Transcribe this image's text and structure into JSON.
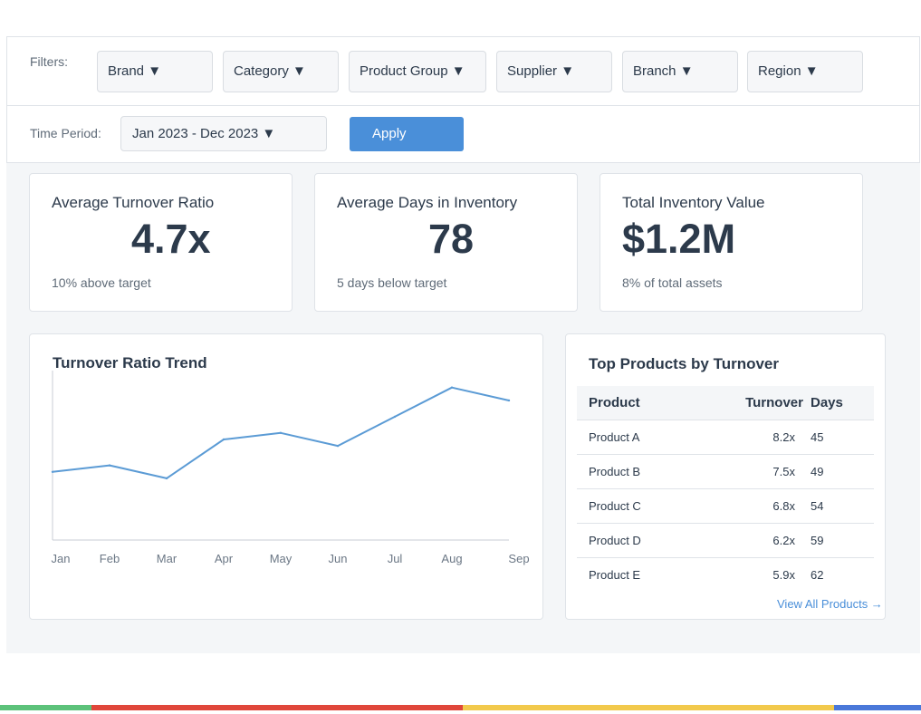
{
  "filters": {
    "label": "Filters:",
    "dropdowns": [
      "Brand ▼",
      "Category ▼",
      "Product Group ▼",
      "Supplier ▼",
      "Branch ▼",
      "Region ▼"
    ]
  },
  "time": {
    "label": "Time Period:",
    "value": "Jan 2023 - Dec 2023 ▼",
    "apply_label": "Apply"
  },
  "kpis": [
    {
      "title": "Average Turnover Ratio",
      "value": "4.7x",
      "sub": "10% above target"
    },
    {
      "title": "Average Days in Inventory",
      "value": "78",
      "sub": "5 days below target"
    },
    {
      "title": "Total Inventory Value",
      "value": "$1.2M",
      "sub": "8% of total assets"
    }
  ],
  "chart": {
    "title": "Turnover Ratio Trend"
  },
  "chart_data": {
    "type": "line",
    "title": "Turnover Ratio Trend",
    "categories": [
      "Jan",
      "Feb",
      "Mar",
      "Apr",
      "May",
      "Jun",
      "Jul",
      "Aug",
      "Sep"
    ],
    "values": [
      4.1,
      4.3,
      3.9,
      5.1,
      5.3,
      4.9,
      5.8,
      6.7,
      6.3
    ],
    "ylim": [
      2.0,
      7.5
    ],
    "xlabel": "",
    "ylabel": "",
    "color": "#5b9bd5"
  },
  "top_products": {
    "title": "Top Products by Turnover",
    "columns": [
      "Product",
      "Turnover",
      "Days"
    ],
    "rows": [
      [
        "Product A",
        "8.2x",
        "45"
      ],
      [
        "Product B",
        "7.5x",
        "49"
      ],
      [
        "Product C",
        "6.8x",
        "54"
      ],
      [
        "Product D",
        "6.2x",
        "59"
      ],
      [
        "Product E",
        "5.9x",
        "62"
      ]
    ],
    "view_all": "View All Products →"
  },
  "colors": {
    "accent": "#4a8fd9",
    "bar_green": "#5cc27a",
    "bar_red": "#e0463a",
    "bar_yellow": "#f2c94c",
    "bar_blue": "#4a78d9"
  }
}
